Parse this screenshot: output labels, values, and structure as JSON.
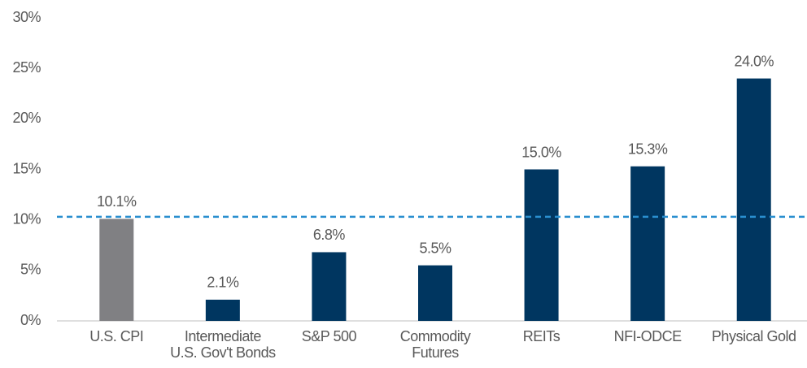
{
  "chart_data": {
    "type": "bar",
    "categories": [
      "U.S. CPI",
      "Intermediate\nU.S. Gov't Bonds",
      "S&P 500",
      "Commodity\nFutures",
      "REITs",
      "NFI-ODCE",
      "Physical Gold"
    ],
    "values": [
      10.1,
      2.1,
      6.8,
      5.5,
      15.0,
      15.3,
      24.0
    ],
    "value_labels": [
      "10.1%",
      "2.1%",
      "6.8%",
      "5.5%",
      "15.0%",
      "15.3%",
      "24.0%"
    ],
    "colors": [
      "#808083",
      "#003660",
      "#003660",
      "#003660",
      "#003660",
      "#003660",
      "#003660"
    ],
    "ylim": [
      0,
      30
    ],
    "yticks": [
      {
        "value": 0,
        "label": "0%"
      },
      {
        "value": 5,
        "label": "5%"
      },
      {
        "value": 10,
        "label": "10%"
      },
      {
        "value": 15,
        "label": "15%"
      },
      {
        "value": 20,
        "label": "20%"
      },
      {
        "value": 25,
        "label": "25%"
      },
      {
        "value": 30,
        "label": "30%"
      }
    ],
    "reference_line": {
      "value": 10.3,
      "color": "#2a8fcf",
      "style": "dashed"
    },
    "grid": false
  }
}
